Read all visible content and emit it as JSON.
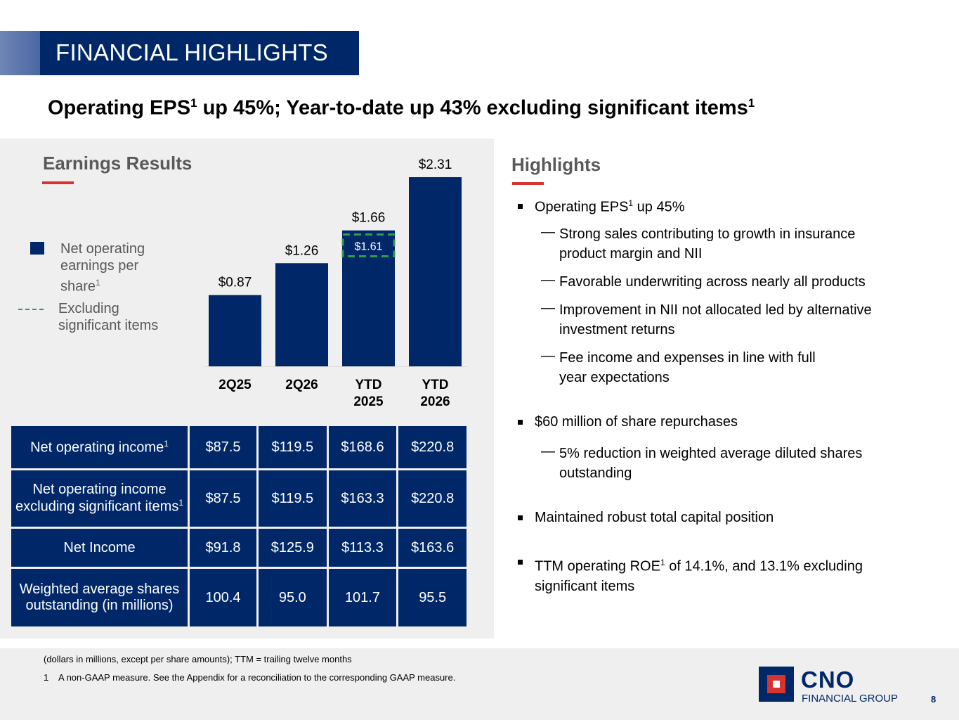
{
  "title": "FINANCIAL HIGHLIGHTS",
  "headline": {
    "part1": "Operating EPS",
    "sup1": "1",
    "part2": " up 45%; Year-to-date up 43% excluding significant items",
    "sup2": "1"
  },
  "earnings": {
    "title": "Earnings Results",
    "legend": [
      {
        "label": "Net operating earnings per share",
        "sup": "1",
        "line1": "Net operating",
        "line2": "earnings per",
        "line3": "share"
      },
      {
        "label": "Excluding significant items",
        "line1": "Excluding",
        "line2": "significant items"
      }
    ]
  },
  "chart_data": {
    "type": "bar",
    "categories": [
      "2Q25",
      "2Q26",
      "YTD 2025",
      "YTD 2026"
    ],
    "category_lines": [
      [
        "2Q25"
      ],
      [
        "2Q26"
      ],
      [
        "YTD",
        "2025"
      ],
      [
        "YTD",
        "2026"
      ]
    ],
    "series": [
      {
        "name": "Net operating earnings per share",
        "values": [
          0.87,
          1.26,
          1.66,
          2.31
        ],
        "labels": [
          "$0.87",
          "$1.26",
          "$1.66",
          "$2.31"
        ]
      },
      {
        "name": "Excluding significant items",
        "values": [
          null,
          null,
          1.61,
          null
        ],
        "labels": [
          null,
          null,
          "$1.61",
          null
        ]
      }
    ],
    "ylim": [
      0,
      2.31
    ],
    "colors": {
      "bar": "#002868",
      "dashed": "#2aa14a"
    }
  },
  "table": {
    "rows": [
      {
        "label": "Net operating income",
        "sup": "1",
        "lines": [
          "Net operating income"
        ],
        "values": [
          "$87.5",
          "$119.5",
          "$168.6",
          "$220.8"
        ]
      },
      {
        "label": "Net operating income excluding significant items",
        "sup": "1",
        "lines": [
          "Net operating income",
          "excluding significant items"
        ],
        "values": [
          "$87.5",
          "$119.5",
          "$163.3",
          "$220.8"
        ]
      },
      {
        "label": "Net Income",
        "lines": [
          "Net Income"
        ],
        "values": [
          "$91.8",
          "$125.9",
          "$113.3",
          "$163.6"
        ]
      },
      {
        "label": "Weighted average shares outstanding (in millions)",
        "lines": [
          "Weighted average shares",
          "outstanding (in millions)"
        ],
        "values": [
          "100.4",
          "95.0",
          "101.7",
          "95.5"
        ]
      }
    ]
  },
  "highlights": {
    "title": "Highlights",
    "b1": {
      "text1": "Operating EPS",
      "sup": "1",
      "text2": " up 45%"
    },
    "b1_subs": [
      [
        "Strong sales contributing to growth in insurance",
        "product margin and NII"
      ],
      [
        "Favorable underwriting across nearly all products"
      ],
      [
        "Improvement in NII not allocated led by alternative",
        "investment returns"
      ],
      [
        "Fee income and expenses in line with full",
        "year expectations"
      ]
    ],
    "b2": "$60 million of share repurchases",
    "b2_subs": [
      [
        "5% reduction in weighted average diluted shares",
        "outstanding"
      ]
    ],
    "b3": "Maintained robust total capital position",
    "b4": {
      "text1": "TTM operating ROE",
      "sup": "1",
      "text2": " of 14.1%, and 13.1% excluding",
      "line2": "significant items"
    },
    "dash": "—"
  },
  "footnotes": {
    "note1": "(dollars in millions, except per share amounts); TTM = trailing twelve months",
    "note2_num": "1",
    "note2": "A non-GAAP measure. See the Appendix for a reconciliation to the corresponding GAAP measure."
  },
  "logo": {
    "name": "CNO",
    "sub": "FINANCIAL GROUP"
  },
  "page_number": "8"
}
